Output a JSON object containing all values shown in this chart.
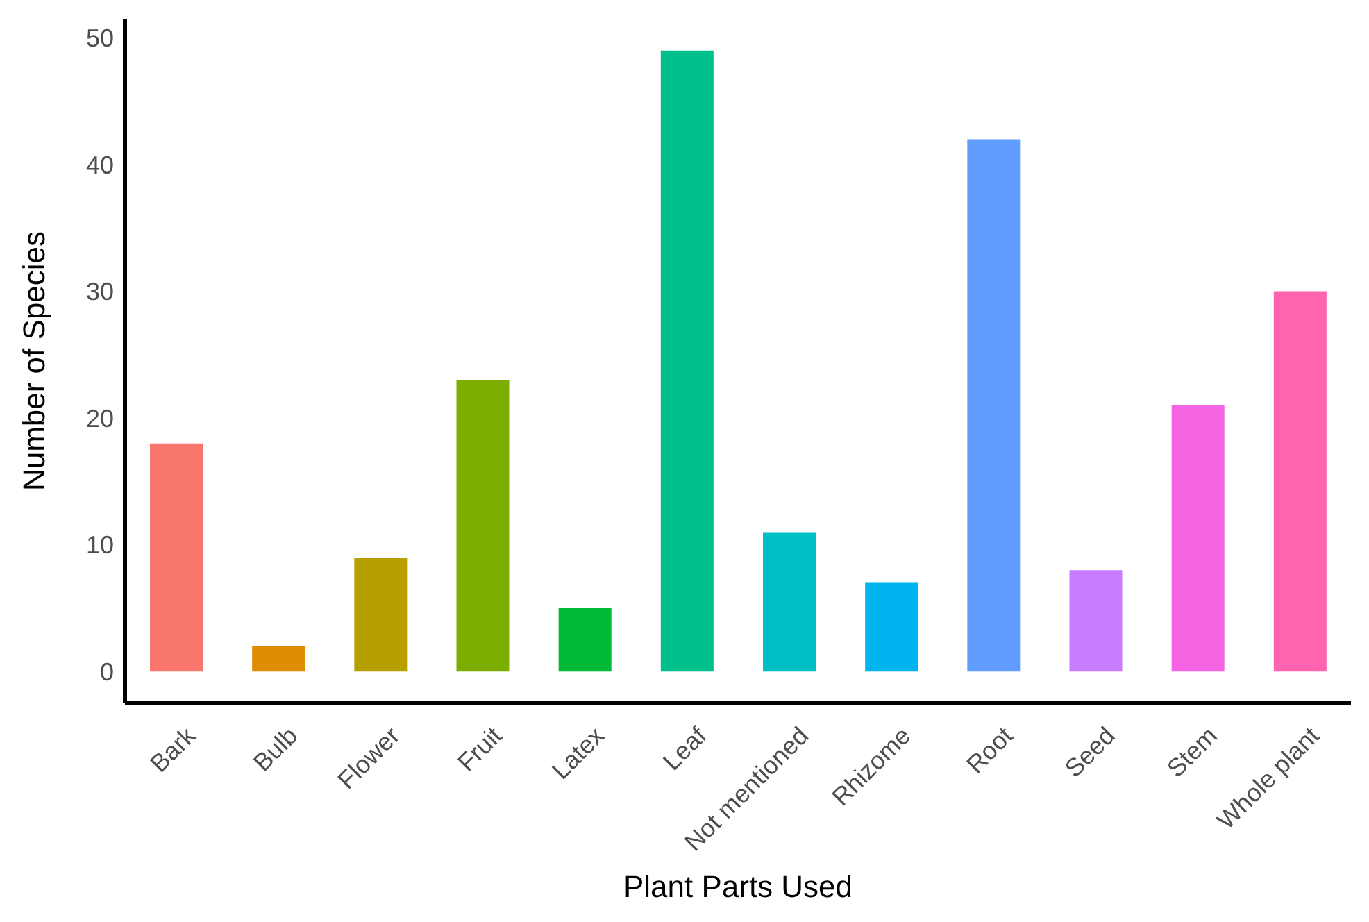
{
  "chart_data": {
    "type": "bar",
    "xlabel": "Plant Parts Used",
    "ylabel": "Number of Species",
    "categories": [
      "Bark",
      "Bulb",
      "Flower",
      "Fruit",
      "Latex",
      "Leaf",
      "Not mentioned",
      "Rhizome",
      "Root",
      "Seed",
      "Stem",
      "Whole plant"
    ],
    "values": [
      18,
      2,
      9,
      23,
      5,
      49,
      11,
      7,
      42,
      8,
      21,
      30
    ],
    "colors": [
      "#f8766d",
      "#de8c00",
      "#b79f00",
      "#7cae00",
      "#00ba38",
      "#00c08b",
      "#00bfc4",
      "#00b4f0",
      "#619cff",
      "#c77cff",
      "#f564e3",
      "#ff64b0"
    ],
    "ylim": [
      -2.45,
      51.45
    ],
    "yticks": [
      0,
      10,
      20,
      30,
      40,
      50
    ],
    "grid": false,
    "legend": false
  }
}
